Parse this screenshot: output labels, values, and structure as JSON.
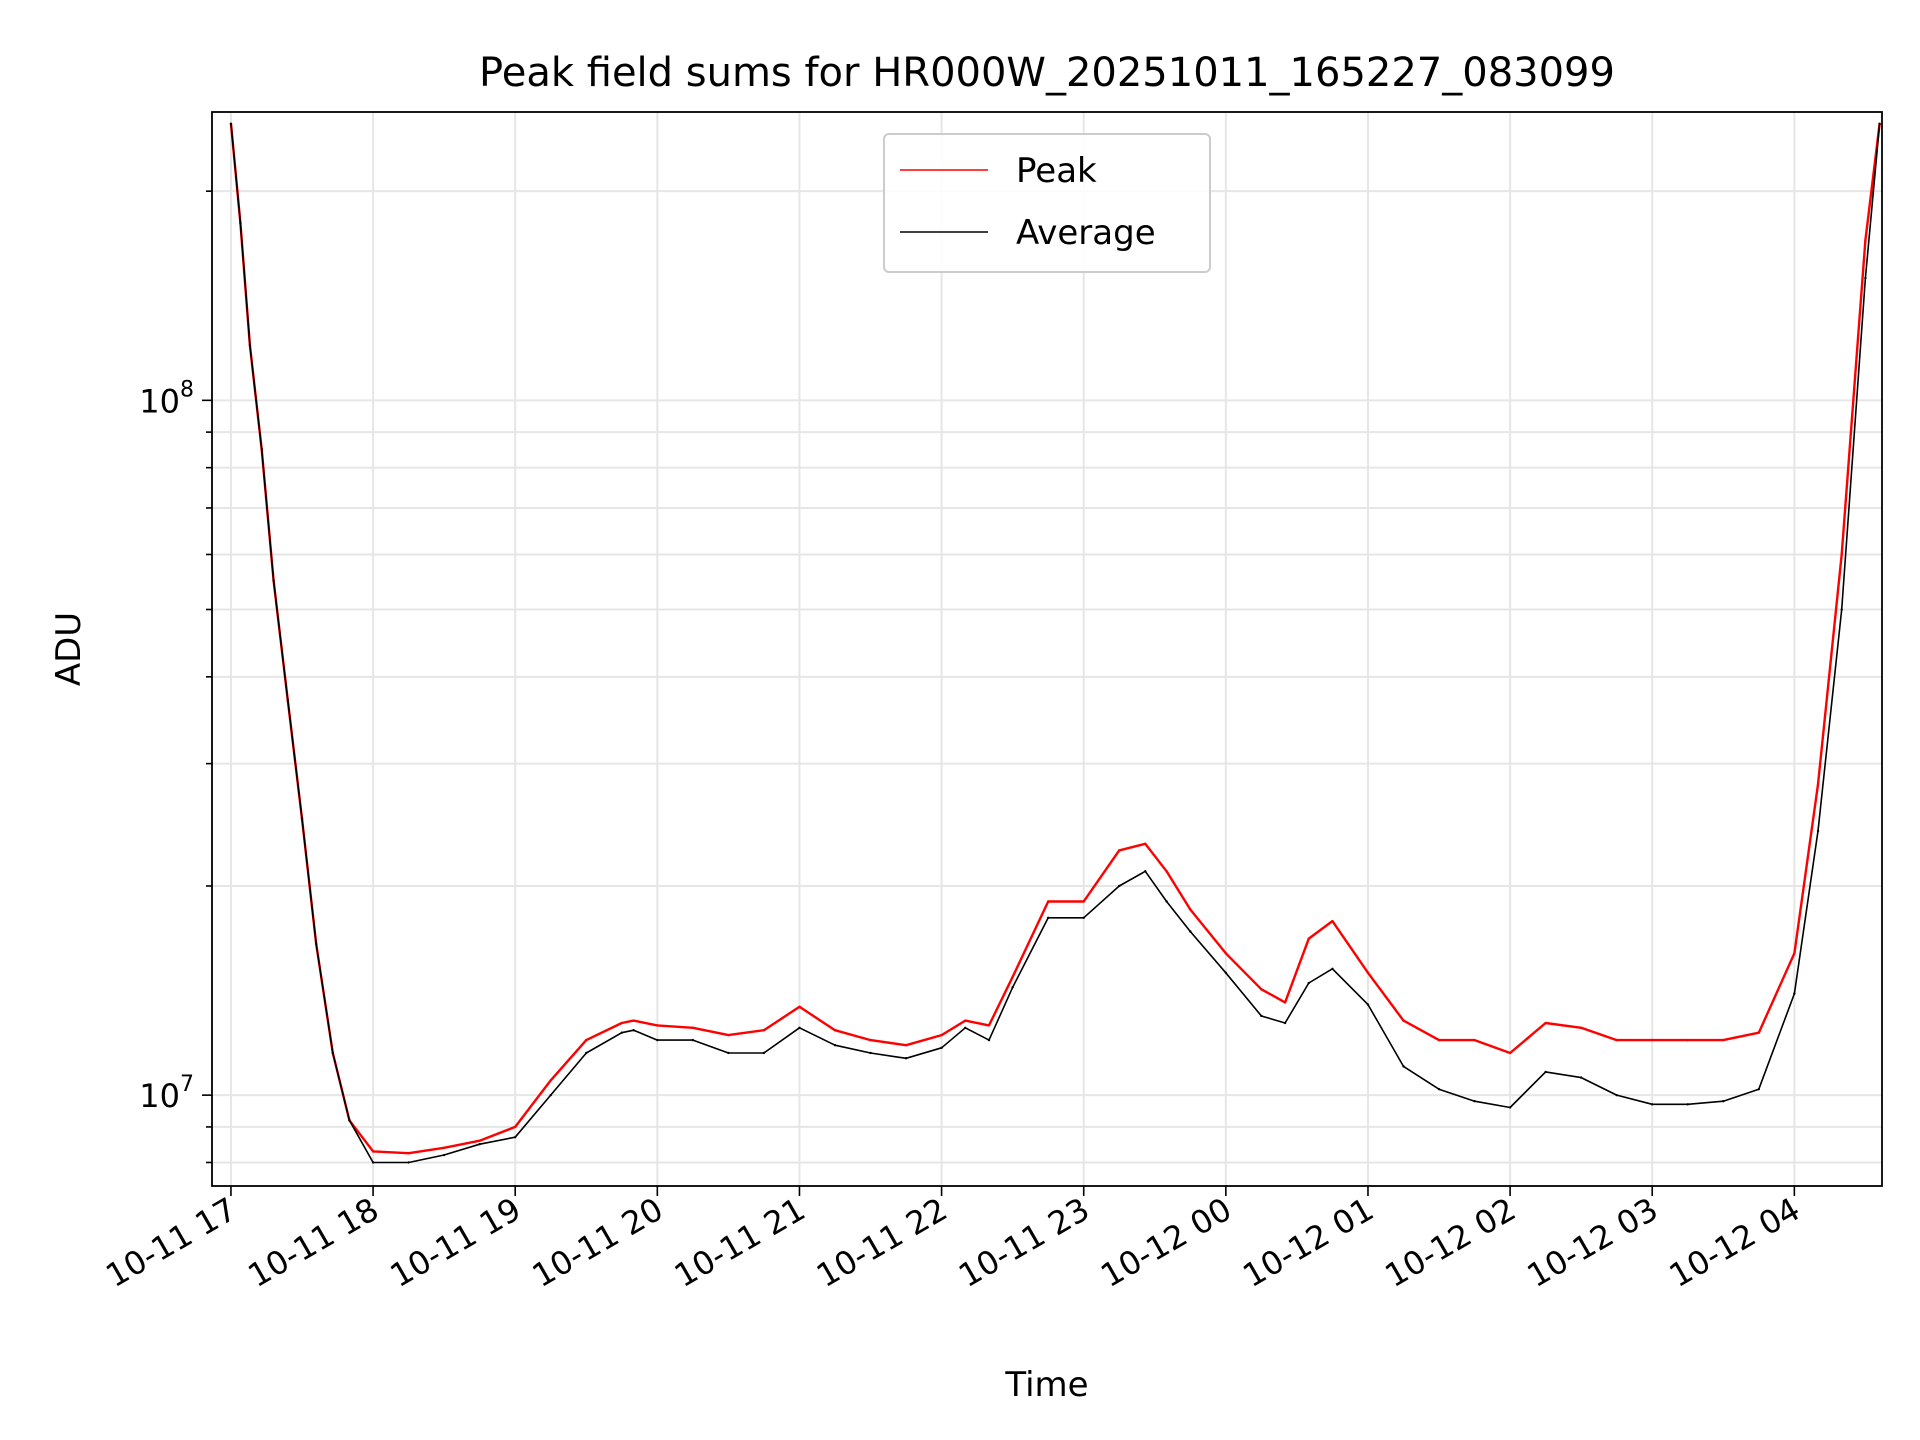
{
  "chart_data": {
    "type": "line",
    "title": "Peak field sums for HR000W_20251011_165227_083099",
    "xlabel": "Time",
    "ylabel": "ADU",
    "yscale": "log",
    "ylim": [
      7400000,
      260000000
    ],
    "xlim": [
      "2025-10-11T16:52",
      "2025-10-12T04:37"
    ],
    "x_ticks": [
      "10-11 17",
      "10-11 18",
      "10-11 19",
      "10-11 20",
      "10-11 21",
      "10-11 22",
      "10-11 23",
      "10-12 00",
      "10-12 01",
      "10-12 02",
      "10-12 03",
      "10-12 04"
    ],
    "y_ticks": [
      {
        "value": 10000000,
        "base": "10",
        "exp": "7"
      },
      {
        "value": 100000000,
        "base": "10",
        "exp": "8"
      }
    ],
    "grid": true,
    "legend_position": "top-center",
    "series": [
      {
        "name": "Peak",
        "color": "#ff0000",
        "x": [
          "2025-10-11T17:00",
          "2025-10-11T17:04",
          "2025-10-11T17:08",
          "2025-10-11T17:13",
          "2025-10-11T17:18",
          "2025-10-11T17:24",
          "2025-10-11T17:30",
          "2025-10-11T17:36",
          "2025-10-11T17:43",
          "2025-10-11T17:50",
          "2025-10-11T18:00",
          "2025-10-11T18:15",
          "2025-10-11T18:30",
          "2025-10-11T18:45",
          "2025-10-11T19:00",
          "2025-10-11T19:15",
          "2025-10-11T19:30",
          "2025-10-11T19:45",
          "2025-10-11T19:50",
          "2025-10-11T20:00",
          "2025-10-11T20:15",
          "2025-10-11T20:30",
          "2025-10-11T20:45",
          "2025-10-11T21:00",
          "2025-10-11T21:15",
          "2025-10-11T21:30",
          "2025-10-11T21:45",
          "2025-10-11T22:00",
          "2025-10-11T22:10",
          "2025-10-11T22:20",
          "2025-10-11T22:30",
          "2025-10-11T22:45",
          "2025-10-11T23:00",
          "2025-10-11T23:15",
          "2025-10-11T23:26",
          "2025-10-11T23:35",
          "2025-10-11T23:45",
          "2025-10-12T00:00",
          "2025-10-12T00:15",
          "2025-10-12T00:25",
          "2025-10-12T00:35",
          "2025-10-12T00:45",
          "2025-10-12T01:00",
          "2025-10-12T01:15",
          "2025-10-12T01:30",
          "2025-10-12T01:45",
          "2025-10-12T02:00",
          "2025-10-12T02:15",
          "2025-10-12T02:30",
          "2025-10-12T02:45",
          "2025-10-12T03:00",
          "2025-10-12T03:15",
          "2025-10-12T03:30",
          "2025-10-12T03:45",
          "2025-10-12T04:00",
          "2025-10-12T04:10",
          "2025-10-12T04:20",
          "2025-10-12T04:30",
          "2025-10-12T04:36"
        ],
        "y": [
          250000000,
          180000000,
          120000000,
          85000000,
          55000000,
          37000000,
          25000000,
          16500000,
          11500000,
          9200000,
          8300000,
          8250000,
          8400000,
          8600000,
          9000000,
          10500000,
          12000000,
          12700000,
          12800000,
          12600000,
          12500000,
          12200000,
          12400000,
          13400000,
          12400000,
          12000000,
          11800000,
          12200000,
          12800000,
          12600000,
          14800000,
          19000000,
          19000000,
          22500000,
          23000000,
          21000000,
          18500000,
          16000000,
          14200000,
          13600000,
          16800000,
          17800000,
          15000000,
          12800000,
          12000000,
          12000000,
          11500000,
          12700000,
          12500000,
          12000000,
          12000000,
          12000000,
          12000000,
          12300000,
          16000000,
          28000000,
          60000000,
          170000000,
          250000000
        ]
      },
      {
        "name": "Average",
        "color": "#000000",
        "x": [
          "2025-10-11T17:00",
          "2025-10-11T17:04",
          "2025-10-11T17:08",
          "2025-10-11T17:13",
          "2025-10-11T17:18",
          "2025-10-11T17:24",
          "2025-10-11T17:30",
          "2025-10-11T17:36",
          "2025-10-11T17:43",
          "2025-10-11T17:50",
          "2025-10-11T18:00",
          "2025-10-11T18:15",
          "2025-10-11T18:30",
          "2025-10-11T18:45",
          "2025-10-11T19:00",
          "2025-10-11T19:15",
          "2025-10-11T19:30",
          "2025-10-11T19:45",
          "2025-10-11T19:50",
          "2025-10-11T20:00",
          "2025-10-11T20:15",
          "2025-10-11T20:30",
          "2025-10-11T20:45",
          "2025-10-11T21:00",
          "2025-10-11T21:15",
          "2025-10-11T21:30",
          "2025-10-11T21:45",
          "2025-10-11T22:00",
          "2025-10-11T22:10",
          "2025-10-11T22:20",
          "2025-10-11T22:30",
          "2025-10-11T22:45",
          "2025-10-11T23:00",
          "2025-10-11T23:15",
          "2025-10-11T23:26",
          "2025-10-11T23:35",
          "2025-10-11T23:45",
          "2025-10-12T00:00",
          "2025-10-12T00:15",
          "2025-10-12T00:25",
          "2025-10-12T00:35",
          "2025-10-12T00:45",
          "2025-10-12T01:00",
          "2025-10-12T01:15",
          "2025-10-12T01:30",
          "2025-10-12T01:45",
          "2025-10-12T02:00",
          "2025-10-12T02:15",
          "2025-10-12T02:30",
          "2025-10-12T02:45",
          "2025-10-12T03:00",
          "2025-10-12T03:15",
          "2025-10-12T03:30",
          "2025-10-12T03:45",
          "2025-10-12T04:00",
          "2025-10-12T04:10",
          "2025-10-12T04:20",
          "2025-10-12T04:30",
          "2025-10-12T04:36"
        ],
        "y": [
          250000000,
          180000000,
          120000000,
          85000000,
          55000000,
          37000000,
          25000000,
          16500000,
          11500000,
          9200000,
          8000000,
          8000000,
          8200000,
          8500000,
          8700000,
          10000000,
          11500000,
          12300000,
          12400000,
          12000000,
          12000000,
          11500000,
          11500000,
          12500000,
          11800000,
          11500000,
          11300000,
          11700000,
          12500000,
          12000000,
          14300000,
          18000000,
          18000000,
          20000000,
          21000000,
          19000000,
          17200000,
          15000000,
          13000000,
          12700000,
          14500000,
          15200000,
          13500000,
          11000000,
          10200000,
          9800000,
          9600000,
          10800000,
          10600000,
          10000000,
          9700000,
          9700000,
          9800000,
          10200000,
          14000000,
          24000000,
          50000000,
          150000000,
          250000000
        ]
      }
    ]
  }
}
